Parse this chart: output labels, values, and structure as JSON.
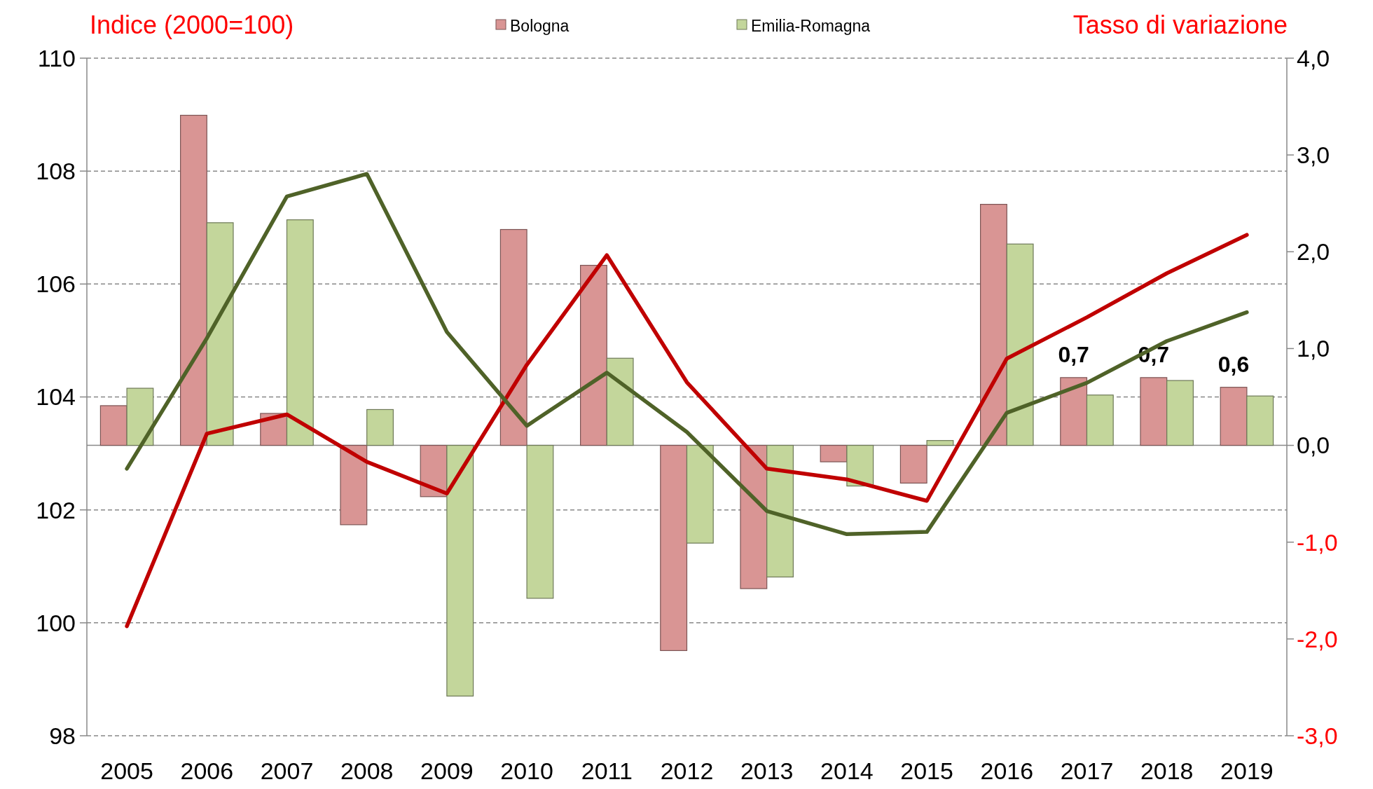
{
  "chart_data": {
    "type": "bar",
    "ylabel": "Indice (2000=100)",
    "y2label": "Tasso di variazione",
    "categories": [
      "2005",
      "2006",
      "2007",
      "2008",
      "2009",
      "2010",
      "2011",
      "2012",
      "2013",
      "2014",
      "2015",
      "2016",
      "2017",
      "2018",
      "2019"
    ],
    "series": [
      {
        "name": "Bologna",
        "axis": "y2",
        "color": "#d99594",
        "values": [
          0.41,
          3.41,
          0.33,
          -0.82,
          -0.53,
          2.23,
          1.86,
          -2.12,
          -1.48,
          -0.17,
          -0.39,
          2.49,
          0.7,
          0.7,
          0.6
        ],
        "value_labels": [
          null,
          null,
          null,
          null,
          null,
          null,
          null,
          null,
          null,
          null,
          null,
          null,
          "0,7",
          "0,7",
          "0,6"
        ]
      },
      {
        "name": "Emilia-Romagna",
        "axis": "y2",
        "color": "#c3d69b",
        "values": [
          0.59,
          2.3,
          2.33,
          0.37,
          -2.59,
          -1.58,
          0.9,
          -1.01,
          -1.36,
          -0.42,
          0.05,
          2.08,
          0.52,
          0.67,
          0.51
        ]
      },
      {
        "type": "line",
        "color": "#c00000",
        "values": [
          99.94,
          103.35,
          103.69,
          102.85,
          102.29,
          104.57,
          106.51,
          104.26,
          102.73,
          102.54,
          102.16,
          104.68,
          105.41,
          106.19,
          106.87
        ]
      },
      {
        "type": "line",
        "color": "#4f6228",
        "values": [
          102.73,
          105.04,
          107.55,
          107.95,
          105.15,
          103.49,
          104.43,
          103.38,
          101.98,
          101.57,
          101.61,
          103.72,
          104.25,
          104.99,
          105.5
        ]
      }
    ],
    "ylim": [
      98,
      110
    ],
    "yticks": [
      98,
      100,
      102,
      104,
      106,
      108,
      110
    ],
    "y2lim": [
      -3,
      4
    ],
    "y2ticks": [
      {
        "value": -3,
        "label": "-3,0"
      },
      {
        "value": -2,
        "label": "-2,0"
      },
      {
        "value": -1,
        "label": "-1,0"
      },
      {
        "value": 0,
        "label": "0,0"
      },
      {
        "value": 1,
        "label": "1,0"
      },
      {
        "value": 2,
        "label": "2,0"
      },
      {
        "value": 3,
        "label": "3,0"
      },
      {
        "value": 4,
        "label": "4,0"
      }
    ],
    "grid": "y",
    "legend": "top",
    "line_style": "solid"
  }
}
